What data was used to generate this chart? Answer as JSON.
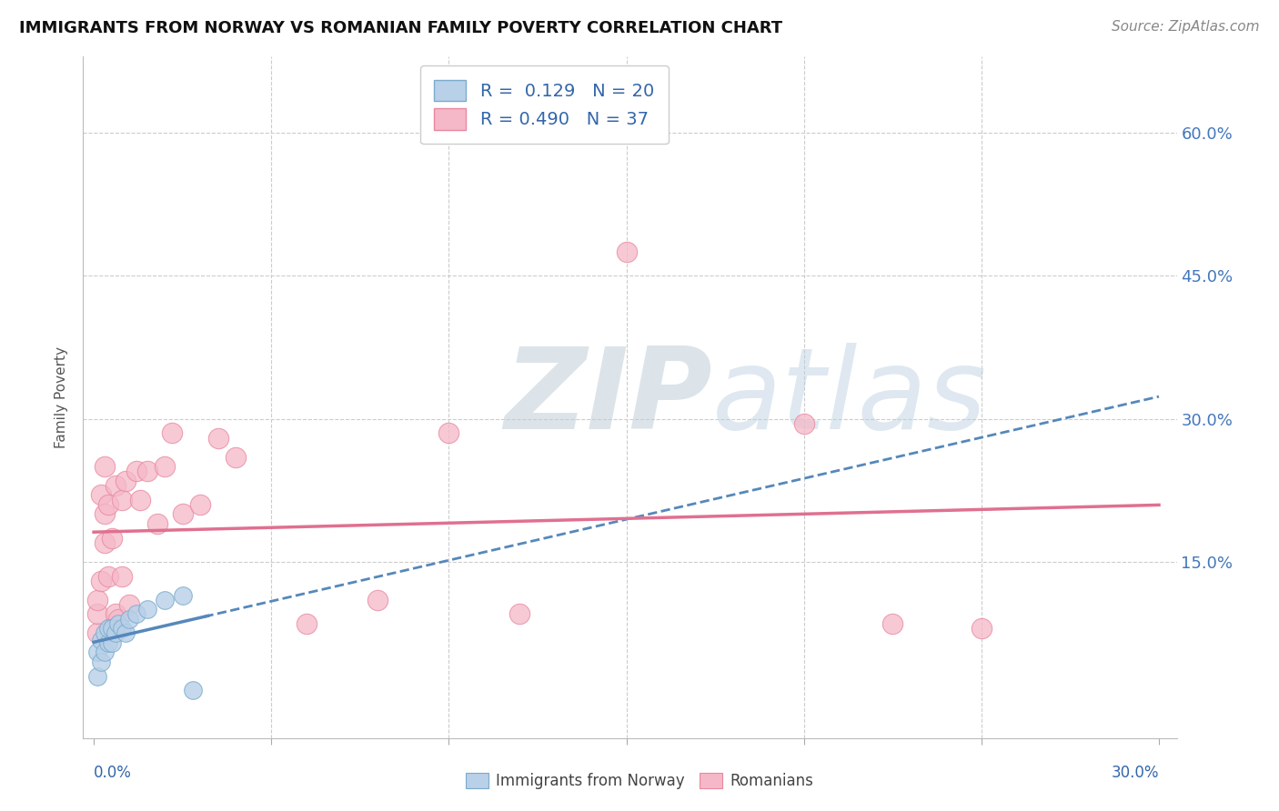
{
  "title": "IMMIGRANTS FROM NORWAY VS ROMANIAN FAMILY POVERTY CORRELATION CHART",
  "source": "Source: ZipAtlas.com",
  "ylabel": "Family Poverty",
  "y_ticks": [
    0.0,
    0.15,
    0.3,
    0.45,
    0.6
  ],
  "y_tick_labels_right": [
    "",
    "15.0%",
    "30.0%",
    "45.0%",
    "60.0%"
  ],
  "x_lim": [
    -0.003,
    0.305
  ],
  "y_lim": [
    -0.035,
    0.68
  ],
  "x_ticks": [
    0.0,
    0.05,
    0.1,
    0.15,
    0.2,
    0.25,
    0.3
  ],
  "norway_R": "0.129",
  "norway_N": "20",
  "romanian_R": "0.490",
  "romanian_N": "37",
  "norway_dot_color": "#b8d0e8",
  "norway_edge_color": "#7aabcc",
  "norwegian_line_color": "#5588bb",
  "romanian_dot_color": "#f5b8c8",
  "romanian_edge_color": "#e888a0",
  "romanian_line_color": "#e07090",
  "watermark_zip_color": "#c5d5e5",
  "watermark_atlas_color": "#b8cce0",
  "grid_color": "#cccccc",
  "norway_x": [
    0.001,
    0.001,
    0.002,
    0.002,
    0.003,
    0.003,
    0.004,
    0.004,
    0.005,
    0.005,
    0.006,
    0.007,
    0.008,
    0.009,
    0.01,
    0.012,
    0.015,
    0.02,
    0.025,
    0.028
  ],
  "norway_y": [
    0.03,
    0.055,
    0.045,
    0.068,
    0.055,
    0.075,
    0.065,
    0.08,
    0.065,
    0.08,
    0.075,
    0.085,
    0.08,
    0.075,
    0.09,
    0.095,
    0.1,
    0.11,
    0.115,
    0.015
  ],
  "romanian_x": [
    0.001,
    0.001,
    0.001,
    0.002,
    0.002,
    0.003,
    0.003,
    0.003,
    0.004,
    0.004,
    0.005,
    0.005,
    0.006,
    0.006,
    0.007,
    0.008,
    0.008,
    0.009,
    0.01,
    0.012,
    0.013,
    0.015,
    0.018,
    0.02,
    0.022,
    0.025,
    0.03,
    0.035,
    0.04,
    0.06,
    0.08,
    0.1,
    0.12,
    0.15,
    0.2,
    0.225,
    0.25
  ],
  "romanian_y": [
    0.075,
    0.095,
    0.11,
    0.13,
    0.22,
    0.17,
    0.2,
    0.25,
    0.135,
    0.21,
    0.08,
    0.175,
    0.095,
    0.23,
    0.09,
    0.135,
    0.215,
    0.235,
    0.105,
    0.245,
    0.215,
    0.245,
    0.19,
    0.25,
    0.285,
    0.2,
    0.21,
    0.28,
    0.26,
    0.085,
    0.11,
    0.285,
    0.095,
    0.475,
    0.295,
    0.085,
    0.08
  ]
}
